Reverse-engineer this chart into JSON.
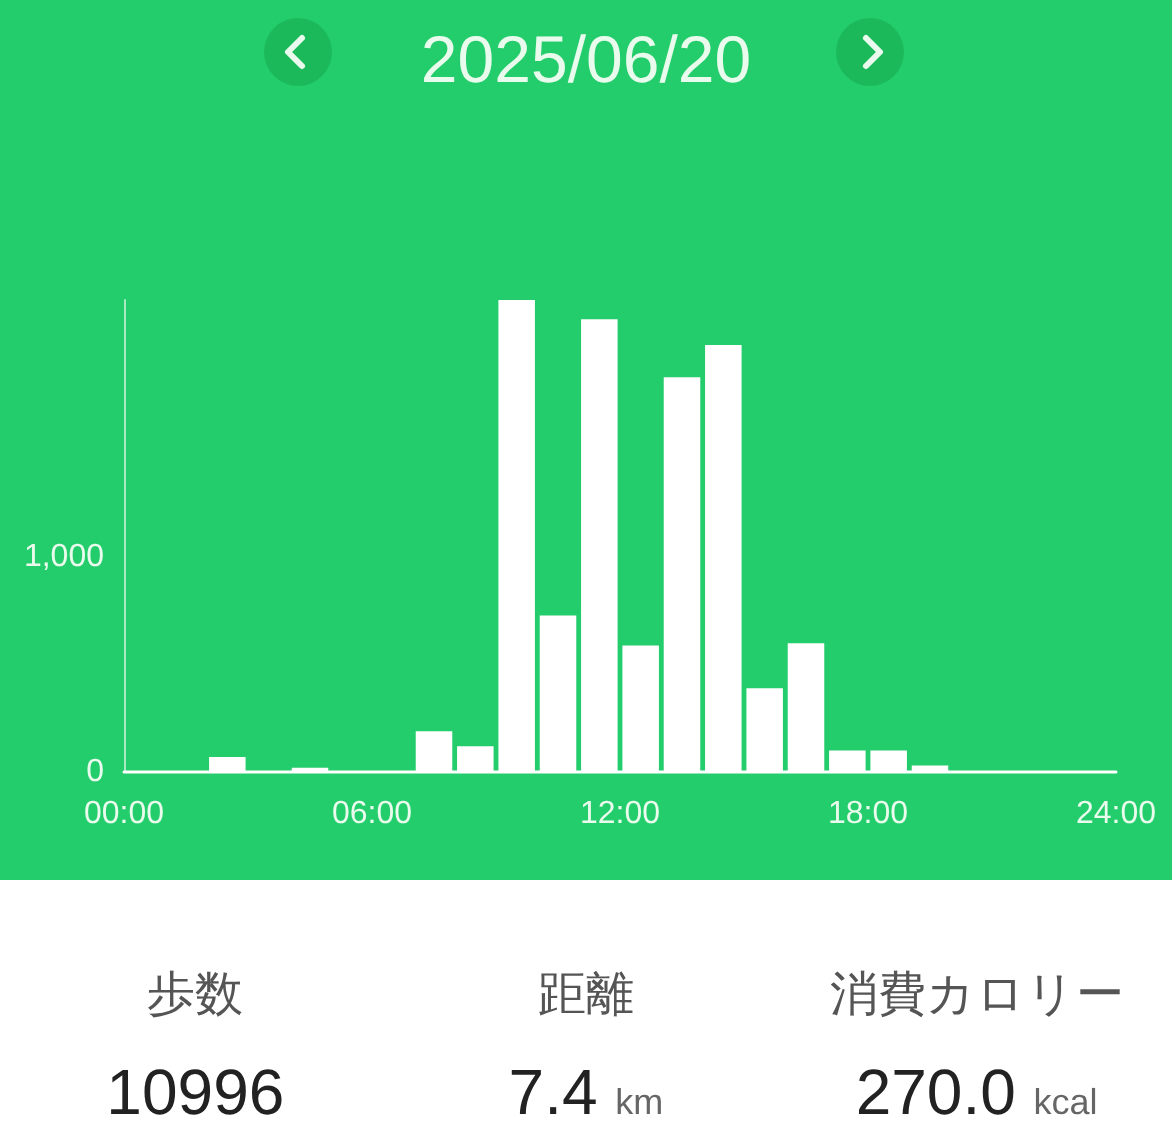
{
  "chart_data": {
    "type": "histogram",
    "title": "2025/06/20",
    "bins": [
      0,
      1,
      2,
      3,
      4,
      5,
      6,
      7,
      8,
      9,
      10,
      11,
      12,
      13,
      14,
      15,
      16,
      17,
      18,
      19,
      20,
      21,
      22,
      23,
      24
    ],
    "values": [
      0,
      0,
      70,
      0,
      20,
      0,
      0,
      190,
      120,
      2200,
      730,
      2110,
      590,
      1840,
      1990,
      390,
      600,
      100,
      100,
      30,
      0,
      0,
      0,
      0
    ],
    "color": "#ffffff",
    "xlim": [
      0,
      24
    ],
    "xticks": [
      {
        "value": 0,
        "label": "00:00"
      },
      {
        "value": 6,
        "label": "06:00"
      },
      {
        "value": 12,
        "label": "12:00"
      },
      {
        "value": 18,
        "label": "18:00"
      },
      {
        "value": 24,
        "label": "24:00"
      }
    ],
    "ylim": [
      0,
      2200
    ],
    "yticks": [
      0,
      {
        "value": 1000,
        "label": "1,000"
      }
    ],
    "annotations": [
      "歩数",
      "10996",
      "距離",
      "7.4 km",
      "消費カロリー",
      "270.0 kcal"
    ]
  }
}
